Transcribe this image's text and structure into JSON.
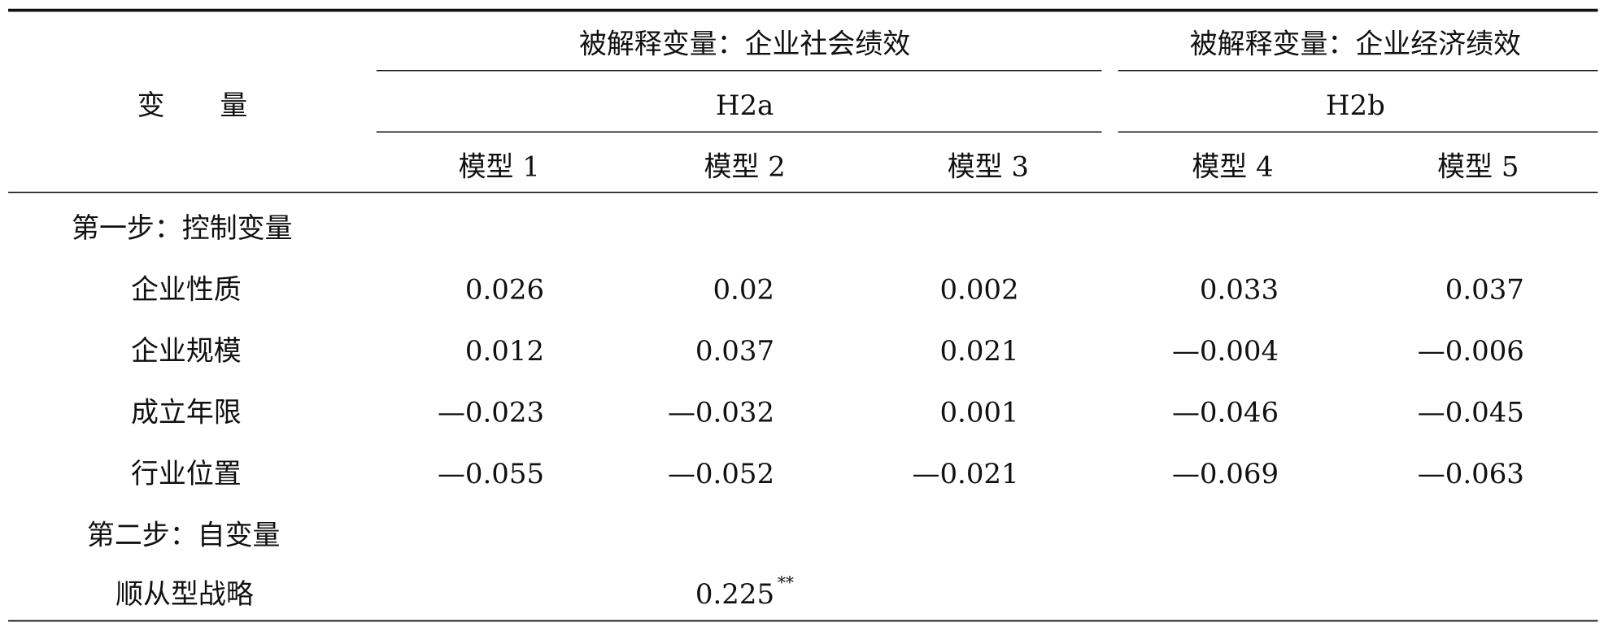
{
  "table": {
    "stub_header": "变　　量",
    "groups": [
      {
        "title": "被解释变量：企业社会绩效",
        "hypothesis": "H2a"
      },
      {
        "title": "被解释变量：企业经济绩效",
        "hypothesis": "H2b"
      }
    ],
    "models": [
      "模型 1",
      "模型 2",
      "模型 3",
      "模型 4",
      "模型 5"
    ],
    "sections": [
      {
        "title": "第一步：控制变量",
        "rows": [
          {
            "label": "企业性质",
            "values": [
              "0.026",
              "0.02",
              "0.002",
              "0.033",
              "0.037"
            ]
          },
          {
            "label": "企业规模",
            "values": [
              "0.012",
              "0.037",
              "0.021",
              "—0.004",
              "—0.006"
            ]
          },
          {
            "label": "成立年限",
            "values": [
              "—0.023",
              "—0.032",
              "0.001",
              "—0.046",
              "—0.045"
            ]
          },
          {
            "label": "行业位置",
            "values": [
              "—0.055",
              "—0.052",
              "—0.021",
              "—0.069",
              "—0.063"
            ]
          }
        ]
      },
      {
        "title": "第二步：自变量",
        "rows": [
          {
            "label": "顺从型战略",
            "values": [
              null,
              "0.225",
              null,
              null,
              null
            ],
            "marks": [
              null,
              "**",
              null,
              null,
              null
            ]
          }
        ]
      }
    ]
  }
}
